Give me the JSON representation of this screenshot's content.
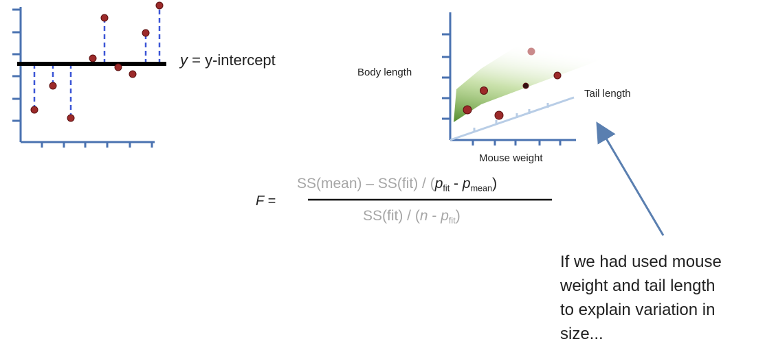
{
  "left_plot": {
    "label_var": "y",
    "label_rest": " = y-intercept"
  },
  "right_plot": {
    "y_label": "Body length",
    "z_label": "Tail length",
    "x_label": "Mouse weight"
  },
  "formula": {
    "lhs": "F =",
    "numerator": [
      "SS(mean) – SS(fit) / (",
      "p",
      "fit",
      " - ",
      "p",
      "mean",
      ")"
    ],
    "denominator": [
      "SS(fit) / (",
      "n",
      " - ",
      "p",
      "fit",
      ")"
    ]
  },
  "note": [
    "If we had used mouse",
    "weight and tail length",
    "to explain variation in",
    "size..."
  ]
}
